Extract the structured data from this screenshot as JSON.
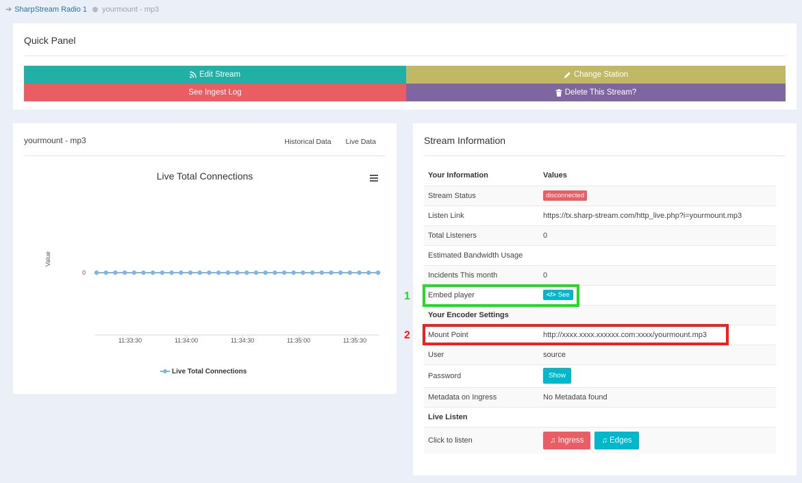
{
  "breadcrumb": {
    "station": "SharpStream Radio 1",
    "stream": "yourmount - mp3"
  },
  "quick_panel": {
    "title": "Quick Panel",
    "edit_stream": "Edit Stream",
    "change_station": "Change Station",
    "see_ingest_log": "See Ingest Log",
    "delete_stream": "Delete This Stream?"
  },
  "chart_panel": {
    "title": "yourmount - mp3",
    "tab_historical": "Historical Data",
    "tab_live": "Live Data"
  },
  "chart_data": {
    "type": "line",
    "title": "Live Total Connections",
    "xlabel": "",
    "ylabel": "Value",
    "x_ticks": [
      "11:33:30",
      "11:34:00",
      "11:34:30",
      "11:35:00",
      "11:35:30"
    ],
    "y_ticks": [
      "0"
    ],
    "series": [
      {
        "name": "Live Total Connections",
        "color": "#7cb5ec",
        "values": [
          0,
          0,
          0,
          0,
          0,
          0,
          0,
          0,
          0,
          0,
          0,
          0,
          0,
          0,
          0,
          0,
          0,
          0,
          0,
          0,
          0,
          0,
          0,
          0,
          0,
          0,
          0,
          0,
          0,
          0,
          0
        ]
      }
    ],
    "legend": "bottom-center",
    "grid": false
  },
  "info": {
    "title": "Stream Information",
    "col_info": "Your Information",
    "col_values": "Values",
    "rows": {
      "stream_status": {
        "label": "Stream Status",
        "value": "disconnected"
      },
      "listen_link": {
        "label": "Listen Link",
        "value": "https://tx.sharp-stream.com/http_live.php?i=yourmount.mp3"
      },
      "total_listeners": {
        "label": "Total Listeners",
        "value": "0"
      },
      "bandwidth": {
        "label": "Estimated Bandwidth Usage",
        "value": ""
      },
      "incidents": {
        "label": "Incidents This month",
        "value": "0"
      },
      "embed_player": {
        "label": "Embed player",
        "button": "See"
      },
      "encoder_header": "Your Encoder Settings",
      "mount_point": {
        "label": "Mount Point",
        "value": "http://xxxx.xxxx.xxxxxx.com:xxxx/yourmount.mp3"
      },
      "user": {
        "label": "User",
        "value": "source"
      },
      "password": {
        "label": "Password",
        "button": "Show"
      },
      "metadata": {
        "label": "Metadata on Ingress",
        "value": "No Metadata found"
      },
      "live_header": "Live Listen",
      "click_listen": {
        "label": "Click to listen",
        "ingress": "Ingress",
        "edges": "Edges"
      }
    }
  },
  "annotations": {
    "marker_1": "1",
    "marker_2": "2"
  }
}
